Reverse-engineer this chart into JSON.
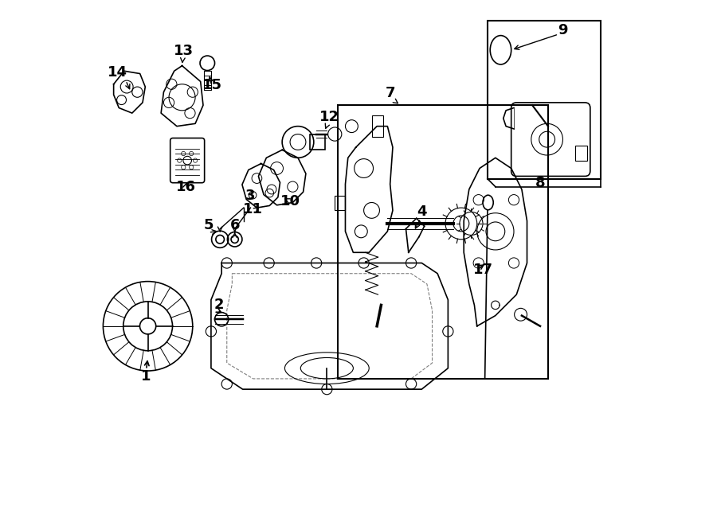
{
  "bg_color": "#ffffff",
  "line_color": "#000000",
  "label_fontsize": 13,
  "fig_width": 9.0,
  "fig_height": 6.61,
  "dpi": 100
}
